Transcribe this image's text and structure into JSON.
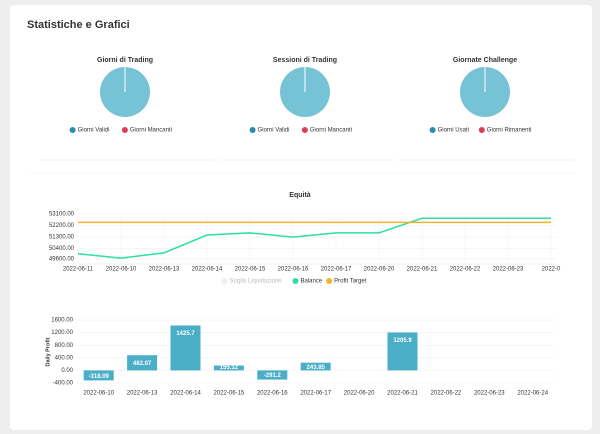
{
  "header": {
    "title": "Statistiche e Grafici"
  },
  "chart_data": [
    {
      "type": "pie",
      "title": "Giorni di Trading",
      "categories": [
        "Giorni Validi",
        "Giorni Mancanti"
      ],
      "values": [
        100,
        0
      ],
      "colors": [
        "#77c3d6",
        "#dc3d55"
      ],
      "legend_colors": [
        "#2a8bb0",
        "#dc3d55"
      ]
    },
    {
      "type": "pie",
      "title": "Sessioni di Trading",
      "categories": [
        "Giorni Validi",
        "Giorni Mancanti"
      ],
      "values": [
        100,
        0
      ],
      "colors": [
        "#77c3d6",
        "#dc3d55"
      ],
      "legend_colors": [
        "#2a8bb0",
        "#dc3d55"
      ]
    },
    {
      "type": "pie",
      "title": "Giornate Challenge",
      "categories": [
        "Giorni Usati",
        "Giorni Rimanenti"
      ],
      "values": [
        100,
        0
      ],
      "colors": [
        "#77c3d6",
        "#dc3d55"
      ],
      "legend_colors": [
        "#2a8bb0",
        "#dc3d55"
      ]
    },
    {
      "type": "line",
      "title": "Equità",
      "categories": [
        "2022-06-11",
        "2022-06-10",
        "2022-06-13",
        "2022-06-14",
        "2022-06-15",
        "2022-06-16",
        "2022-06-17",
        "2022-06-20",
        "2022-06-21",
        "2022-06-22",
        "2022-06-23",
        "2022-0"
      ],
      "series": [
        {
          "name": "Soglia Liquidazione",
          "color": "#cfe3f0",
          "hidden": true,
          "values": [
            null,
            null,
            null,
            null,
            null,
            null,
            null,
            null,
            null,
            null,
            null,
            null
          ]
        },
        {
          "name": "Balance",
          "color": "#2ee0a0",
          "values": [
            50000,
            49660,
            50070,
            51460,
            51630,
            51300,
            51630,
            51630,
            52770,
            52770,
            52770,
            52770
          ]
        },
        {
          "name": "Profit Target",
          "color": "#f0b429",
          "values": [
            52450,
            52450,
            52450,
            52450,
            52450,
            52450,
            52450,
            52450,
            52450,
            52450,
            52450,
            52450
          ]
        }
      ],
      "ylim": [
        49200,
        53100
      ],
      "yticks": [
        {
          "value": 49600,
          "label": "49600.00"
        },
        {
          "value": 50400,
          "label": "50400.00"
        },
        {
          "value": 51300,
          "label": "51300.00"
        },
        {
          "value": 52200,
          "label": "52200.00"
        },
        {
          "value": 53100,
          "label": "53100.00"
        }
      ],
      "grid": true
    },
    {
      "type": "bar",
      "y_label": "Daily Profit",
      "categories": [
        "2022-06-10",
        "2022-06-13",
        "2022-06-14",
        "2022-06-15",
        "2022-06-16",
        "2022-06-17",
        "2022-06-20",
        "2022-06-21",
        "2022-06-22",
        "2022-06-23",
        "2022-06-24"
      ],
      "values": [
        -318.09,
        482.07,
        1425.7,
        155.12,
        -291.2,
        243.85,
        0,
        1205.9,
        0,
        0,
        0
      ],
      "color": "#4aaec6",
      "ylim": [
        -400,
        1600
      ],
      "yticks": [
        {
          "value": -400,
          "label": "-400.00"
        },
        {
          "value": 0,
          "label": "0.00"
        },
        {
          "value": 400,
          "label": "400.00"
        },
        {
          "value": 800,
          "label": "800.00"
        },
        {
          "value": 1200,
          "label": "1200.00"
        },
        {
          "value": 1600,
          "label": "1600.00"
        }
      ],
      "grid": true
    }
  ]
}
